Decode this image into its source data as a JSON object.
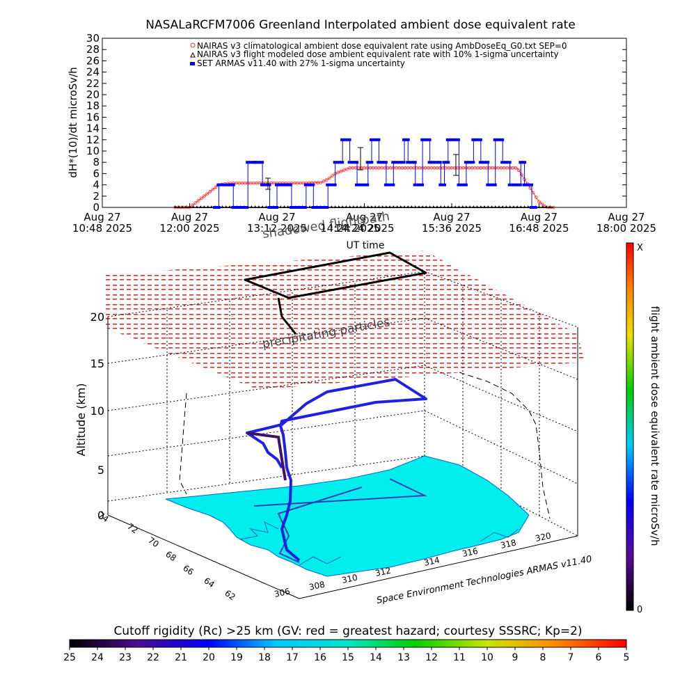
{
  "chart_data": [
    {
      "type": "line",
      "title": "NASALaRCFM7006  Greenland Interpolated ambient dose equivalent rate",
      "ylabel": "dH*(10)/dt microSv/h",
      "xlabel": "UT time",
      "ylim": [
        0,
        30
      ],
      "yticks": [
        "0",
        "2",
        "4",
        "6",
        "8",
        "10",
        "12",
        "14",
        "16",
        "18",
        "20",
        "22",
        "24",
        "26",
        "28",
        "30"
      ],
      "xticks": [
        {
          "line1": "Aug 27",
          "line2": "10:48 2025"
        },
        {
          "line1": "Aug 27",
          "line2": "12:00 2025"
        },
        {
          "line1": "Aug 27",
          "line2": "13:12 2025"
        },
        {
          "line1": "Aug 27",
          "line2": "14:24 2025"
        },
        {
          "line1": "Aug 27",
          "line2": "15:36 2025"
        },
        {
          "line1": "Aug 27",
          "line2": "16:48 2025"
        },
        {
          "line1": "Aug 27",
          "line2": "18:00 2025"
        }
      ],
      "xlim_hours": [
        10.8,
        18.0
      ],
      "legend": [
        "NAIRAS v3 climatological ambient dose equivalent rate using AmbDoseEq_G0.txt SEP=0",
        "NAIRAS v3 flight modeled dose ambient equivalent rate with 10% 1-sigma uncertainty",
        "SET ARMAS v11.40 with 27% 1-sigma uncertainty"
      ],
      "legend_placement": "top",
      "overlay_text": [
        "shadowed flightpath",
        "14:24 2025"
      ],
      "colors": {
        "climatological": "#ff3030",
        "flight_model": "#000000",
        "armas": "#0000ff"
      },
      "series": [
        {
          "name": "NAIRAS v3 climatological ambient dose equivalent rate using AmbDoseEq_G0.txt SEP=0",
          "x": [
            11.8,
            12.0,
            12.1,
            12.2,
            12.3,
            12.4,
            12.5,
            12.6,
            13.5,
            13.8,
            13.9,
            14.0,
            14.1,
            14.2,
            14.5,
            15.0,
            16.0,
            16.5,
            16.6,
            16.7,
            16.8,
            16.9,
            17.0
          ],
          "y": [
            0,
            0,
            1,
            2,
            3,
            4,
            4.2,
            4.3,
            4.3,
            4.4,
            5,
            6,
            6.5,
            7,
            7,
            7,
            7,
            7,
            5,
            3,
            1,
            0,
            0
          ]
        },
        {
          "name": "NAIRAS v3 flight modeled dose ambient equivalent rate with 10% 1-sigma uncertainty",
          "x": [
            11.8,
            17.0
          ],
          "y": [
            0,
            0
          ]
        },
        {
          "name": "SET ARMAS v11.40 with 27% 1-sigma uncertainty",
          "x": [
            12.35,
            12.4,
            12.55,
            12.6,
            12.8,
            12.9,
            13.0,
            13.1,
            13.2,
            13.4,
            13.6,
            13.7,
            13.9,
            14.0,
            14.1,
            14.2,
            14.3,
            14.45,
            14.5,
            14.6,
            14.7,
            14.8,
            14.95,
            15.0,
            15.1,
            15.2,
            15.3,
            15.45,
            15.5,
            15.55,
            15.7,
            15.8,
            15.9,
            16.0,
            16.1,
            16.2,
            16.3,
            16.4,
            16.55,
            16.6,
            16.7
          ],
          "y": [
            0,
            4,
            4,
            0,
            8,
            8,
            4,
            0,
            4,
            0,
            4,
            0,
            4,
            8,
            12,
            8,
            4,
            8,
            12,
            8,
            4,
            8,
            12,
            8,
            4,
            12,
            8,
            4,
            8,
            12,
            4,
            8,
            12,
            8,
            4,
            12,
            8,
            4,
            8,
            4,
            0
          ]
        }
      ]
    },
    {
      "type": "3d-flight-path",
      "zlabel": "Altitude (km)",
      "zticks": [
        "0",
        "5",
        "10",
        "15",
        "20"
      ],
      "lat_ticks": [
        "74",
        "72",
        "70",
        "68",
        "66",
        "64",
        "62"
      ],
      "lon_ticks": [
        "306",
        "308",
        "310",
        "312",
        "314",
        "316",
        "318",
        "320"
      ],
      "labels": [
        "shadowed flightpath",
        "precipitating particles",
        "Space Environment Technologies ARMAS v11.40"
      ],
      "colorbar_label": "flight ambient dose equivalent rate microSv/h",
      "colorbar_top": "X",
      "colorbar_bottom": "0"
    },
    {
      "type": "colorbar",
      "title": "Cutoff rigidity (Rc) >25 km (GV: red = greatest hazard; courtesy SSSRC; Kp=2)",
      "ticks": [
        "25",
        "24",
        "23",
        "22",
        "21",
        "20",
        "19",
        "18",
        "17",
        "16",
        "15",
        "14",
        "13",
        "12",
        "11",
        "10",
        "9",
        "8",
        "7",
        "6",
        "5"
      ]
    }
  ]
}
